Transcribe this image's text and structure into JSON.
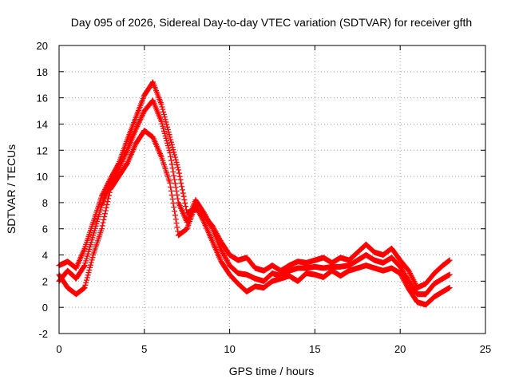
{
  "chart_data": {
    "type": "scatter",
    "title": "Day 095 of 2026, Sidereal Day-to-day VTEC variation (SDTVAR) for receiver gfth",
    "xlabel": "GPS time / hours",
    "ylabel": "SDTVAR / TECUs",
    "xlim": [
      0,
      25
    ],
    "ylim": [
      -2,
      20
    ],
    "xticks": [
      "0",
      "5",
      "10",
      "15",
      "20",
      "25"
    ],
    "yticks": [
      "-2",
      "0",
      "2",
      "4",
      "6",
      "8",
      "10",
      "12",
      "14",
      "16",
      "18",
      "20"
    ],
    "grid": true,
    "marker": "plus",
    "color": "#ff0000",
    "series": [
      {
        "name": "upper",
        "x": [
          0,
          0.5,
          1,
          1.5,
          2,
          2.5,
          3,
          3.5,
          4,
          4.5,
          5,
          5.5,
          6,
          6.5,
          7,
          7.5,
          8,
          8.5,
          9,
          9.5,
          10,
          10.5,
          11,
          11.5,
          12,
          12.5,
          13,
          13.5,
          14,
          14.5,
          15,
          15.5,
          16,
          16.5,
          17,
          17.5,
          18,
          18.5,
          19,
          19.5,
          20,
          20.5,
          21,
          21.5,
          22,
          22.5,
          22.9
        ],
        "y": [
          3.2,
          3.5,
          3.0,
          4.5,
          6.5,
          8.5,
          9.8,
          11.0,
          12.8,
          14.5,
          16.2,
          17.2,
          15.5,
          13.0,
          10.5,
          7.2,
          7.5,
          7.0,
          6.2,
          5.0,
          4.0,
          3.6,
          3.8,
          3.0,
          2.8,
          3.2,
          2.8,
          3.2,
          3.5,
          3.4,
          3.6,
          3.8,
          3.4,
          3.8,
          3.6,
          4.2,
          4.8,
          4.2,
          4.0,
          4.5,
          3.6,
          2.8,
          1.5,
          1.8,
          2.6,
          3.2,
          3.6
        ]
      },
      {
        "name": "lower",
        "x": [
          0,
          0.5,
          1,
          1.5,
          2,
          2.5,
          3,
          3.5,
          4,
          4.5,
          5,
          5.5,
          6,
          6.5,
          7,
          7.5,
          8,
          8.5,
          9,
          9.5,
          10,
          10.5,
          11,
          11.5,
          12,
          12.5,
          13,
          13.5,
          14,
          14.5,
          15,
          15.5,
          16,
          16.5,
          17,
          17.5,
          18,
          18.5,
          19,
          19.5,
          20,
          20.5,
          21,
          21.5,
          22,
          22.5,
          22.9
        ],
        "y": [
          2.5,
          1.5,
          1.0,
          1.5,
          4.0,
          6.0,
          9.0,
          10.0,
          11.0,
          12.5,
          13.5,
          13.0,
          11.5,
          9.5,
          5.5,
          6.0,
          7.8,
          6.5,
          5.0,
          3.5,
          2.5,
          1.8,
          1.2,
          1.6,
          1.5,
          2.0,
          2.2,
          2.4,
          2.0,
          2.6,
          2.5,
          2.3,
          2.8,
          2.4,
          2.8,
          3.0,
          3.2,
          3.0,
          2.8,
          3.0,
          2.6,
          1.4,
          0.4,
          0.2,
          0.8,
          1.2,
          1.5
        ]
      },
      {
        "name": "middle",
        "x": [
          0,
          0.5,
          1,
          1.5,
          2,
          2.5,
          3,
          3.5,
          4,
          4.5,
          5,
          5.5,
          6,
          6.5,
          7,
          7.5,
          8,
          8.5,
          9,
          9.5,
          10,
          10.5,
          11,
          11.5,
          12,
          12.5,
          13,
          13.5,
          14,
          14.5,
          15,
          15.5,
          16,
          16.5,
          17,
          17.5,
          18,
          18.5,
          19,
          19.5,
          20,
          20.5,
          21,
          21.5,
          22,
          22.5,
          22.9
        ],
        "y": [
          2.0,
          2.8,
          2.2,
          3.2,
          5.5,
          7.8,
          9.4,
          10.6,
          12.0,
          13.6,
          15.0,
          15.8,
          14.2,
          11.8,
          8.0,
          6.5,
          8.2,
          7.2,
          6.0,
          4.4,
          3.2,
          2.6,
          2.5,
          2.2,
          2.0,
          2.6,
          2.4,
          2.8,
          3.0,
          3.0,
          3.1,
          3.0,
          3.1,
          3.1,
          3.2,
          3.6,
          4.0,
          3.6,
          3.4,
          3.8,
          3.1,
          2.0,
          1.0,
          1.0,
          1.8,
          2.2,
          2.5
        ]
      }
    ]
  }
}
